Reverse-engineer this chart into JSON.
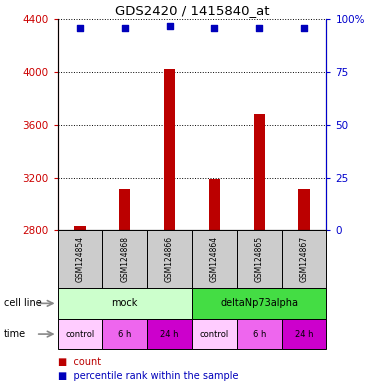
{
  "title": "GDS2420 / 1415840_at",
  "samples": [
    "GSM124854",
    "GSM124868",
    "GSM124866",
    "GSM124864",
    "GSM124865",
    "GSM124867"
  ],
  "counts": [
    2835,
    3115,
    4020,
    3190,
    3680,
    3115
  ],
  "percentile_ranks": [
    96,
    96,
    97,
    96,
    96,
    96
  ],
  "ylim_left": [
    2800,
    4400
  ],
  "ylim_right": [
    0,
    100
  ],
  "yticks_left": [
    2800,
    3200,
    3600,
    4000,
    4400
  ],
  "yticks_right": [
    0,
    25,
    50,
    75,
    100
  ],
  "bar_color": "#bb0000",
  "dot_color": "#0000bb",
  "cell_line_groups": [
    {
      "label": "mock",
      "start": 0,
      "end": 3,
      "color": "#ccffcc"
    },
    {
      "label": "deltaNp73alpha",
      "start": 3,
      "end": 6,
      "color": "#44dd44"
    }
  ],
  "time_labels": [
    "control",
    "6 h",
    "24 h",
    "control",
    "6 h",
    "24 h"
  ],
  "time_colors": [
    "#ffccff",
    "#ee66ee",
    "#cc00cc",
    "#ffccff",
    "#ee66ee",
    "#cc00cc"
  ],
  "sample_box_color": "#cccccc",
  "cell_line_label": "cell line",
  "time_label": "time",
  "legend_count_label": "count",
  "legend_pct_label": "percentile rank within the sample",
  "left_axis_color": "#cc0000",
  "right_axis_color": "#0000cc",
  "baseline": 2800
}
